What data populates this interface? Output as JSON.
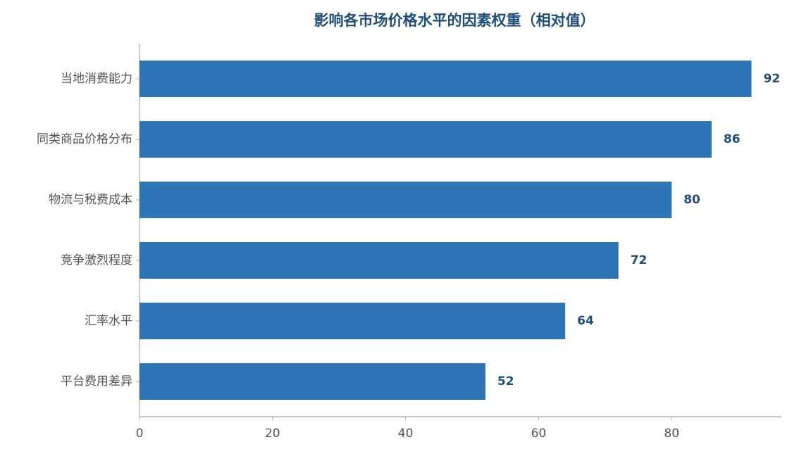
{
  "chart_data": {
    "type": "barh",
    "title": "影响各市场价格水平的因素权重（相对值）",
    "categories": [
      "当地消费能力",
      "同类商品价格分布",
      "物流与税费成本",
      "竞争激烈程度",
      "汇率水平",
      "平台费用差异"
    ],
    "values": [
      92,
      86,
      80,
      72,
      64,
      52
    ],
    "color": "#2e75b6",
    "xlim": [
      0,
      96.5
    ],
    "xticks": [
      0,
      20,
      40,
      60,
      80
    ]
  }
}
